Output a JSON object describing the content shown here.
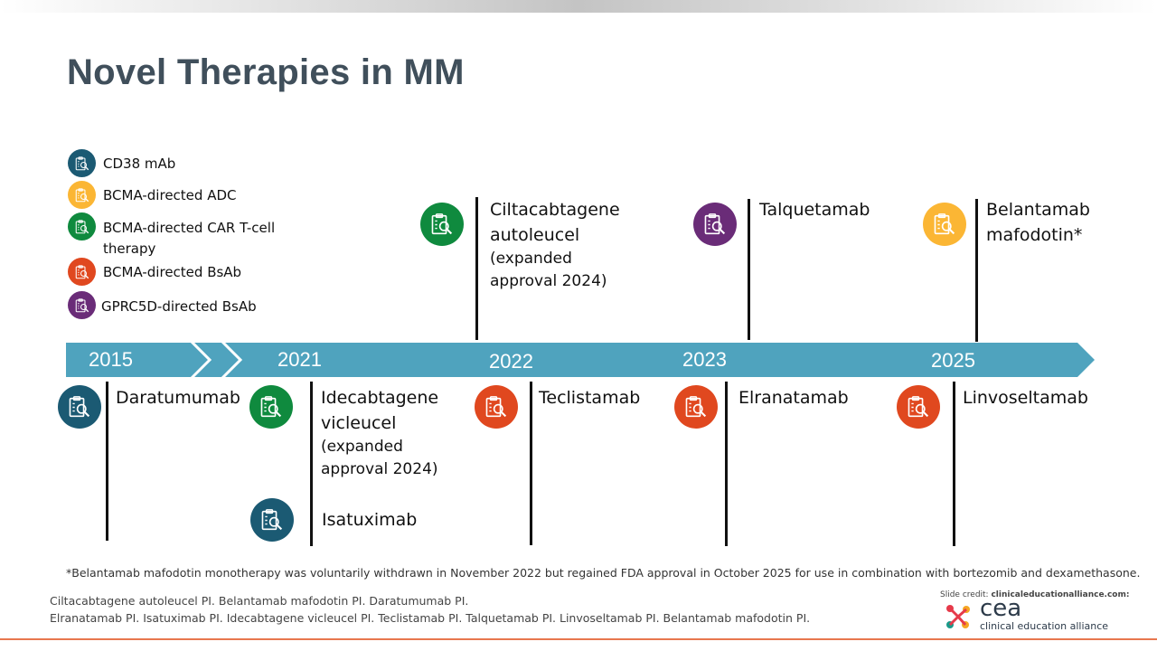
{
  "title": "Novel Therapies in MM",
  "colors": {
    "cd38": "#1b5a73",
    "adc": "#fbb634",
    "car_t": "#0f8a3e",
    "bcma_bsab": "#e0481f",
    "gprc5d": "#6a2c78",
    "arrow": "#4fa3be"
  },
  "legend": [
    {
      "label": "CD38 mAb",
      "color": "#1b5a73"
    },
    {
      "label": "BCMA-directed ADC",
      "color": "#fbb634"
    },
    {
      "label": "BCMA-directed CAR T-cell therapy",
      "color": "#0f8a3e"
    },
    {
      "label": "BCMA-directed BsAb",
      "color": "#e0481f"
    },
    {
      "label": "GPRC5D-directed BsAb",
      "color": "#6a2c78"
    }
  ],
  "years": [
    "2015",
    "2021",
    "2022",
    "2023",
    "2025"
  ],
  "top_items": [
    {
      "name": "Ciltacabtagene autoleucel",
      "note": "(expanded approval 2024)",
      "color": "#0f8a3e"
    },
    {
      "name": "Talquetamab",
      "color": "#6a2c78"
    },
    {
      "name": "Belantamab mafodotin*",
      "color": "#fbb634"
    }
  ],
  "bottom_items": [
    {
      "name": "Daratumumab",
      "color": "#1b5a73"
    },
    {
      "name": "Idecabtagene vicleucel",
      "note": "(expanded approval 2024)",
      "color": "#0f8a3e"
    },
    {
      "name": "Isatuximab",
      "color": "#1b5a73"
    },
    {
      "name": "Teclistamab",
      "color": "#e0481f"
    },
    {
      "name": "Elranatamab",
      "color": "#e0481f"
    },
    {
      "name": "Linvoseltamab",
      "color": "#e0481f"
    }
  ],
  "footnote": "*Belantamab mafodotin monotherapy was voluntarily withdrawn in November 2022 but regained FDA approval in October 2025 for use in combination with bortezomib and dexamethasone.",
  "references": [
    "Ciltacabtagene autoleucel PI. Belantamab mafodotin PI. Daratumumab PI.",
    "Elranatamab PI. Isatuximab PI. Idecabtagene vicleucel PI. Teclistamab PI. Talquetamab PI. Linvoseltamab PI. Belantamab mafodotin PI."
  ],
  "credit": {
    "label": "Slide credit:",
    "site": "clinicaleducationalliance.com:",
    "logo_text": "cea",
    "logo_sub": "clinical education alliance"
  }
}
